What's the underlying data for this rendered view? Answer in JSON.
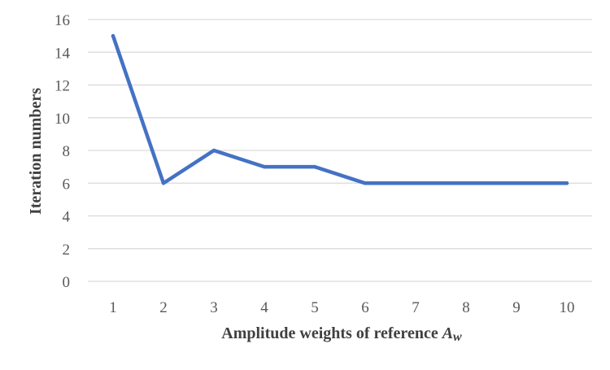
{
  "chart_data": {
    "type": "line",
    "title": "",
    "xlabel": "Amplitude weights of reference ",
    "xlabel_symbol": "A",
    "xlabel_subscript": "w",
    "ylabel": "Iteration numbers",
    "categories": [
      "1",
      "2",
      "3",
      "4",
      "5",
      "6",
      "7",
      "8",
      "9",
      "10"
    ],
    "series": [
      {
        "values": [
          15,
          6,
          8,
          7,
          7,
          6,
          6,
          6,
          6,
          6
        ],
        "color": "#4472C4"
      }
    ],
    "ylim": [
      0,
      16
    ],
    "yticks": [
      0,
      2,
      4,
      6,
      8,
      10,
      12,
      14,
      16
    ],
    "grid": true,
    "grid_color": "#D9D9D9",
    "legend": "none"
  }
}
